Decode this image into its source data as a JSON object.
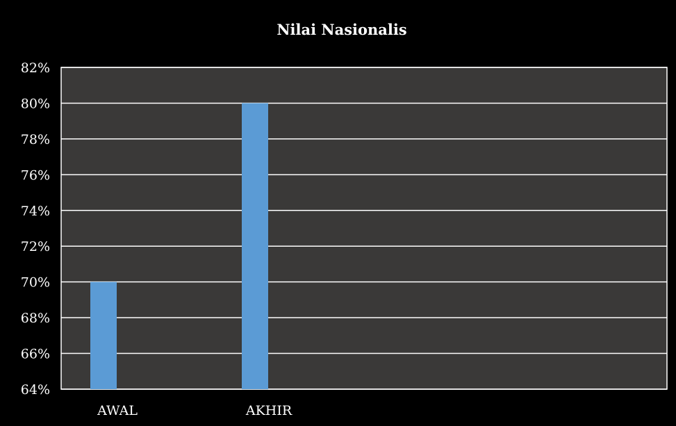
{
  "chart_data": {
    "type": "bar",
    "title": "Nilai Nasionalis",
    "categories": [
      "AWAL",
      "AKHIR"
    ],
    "series": [
      {
        "values": [
          70,
          80
        ]
      }
    ],
    "ylim": [
      64,
      82
    ],
    "y_ticks": [
      64,
      66,
      68,
      70,
      72,
      74,
      76,
      78,
      80,
      82
    ],
    "y_tick_labels": [
      "64%",
      "66%",
      "68%",
      "70%",
      "72%",
      "74%",
      "76%",
      "78%",
      "80%",
      "82%"
    ],
    "xlabel": "",
    "ylabel": "",
    "grid": true,
    "legend": "none",
    "colors": {
      "background": "#000000",
      "plot_area": "#3a3938",
      "bar": "#5b9bd5",
      "gridline": "#ffffff",
      "text": "#ffffff"
    }
  }
}
